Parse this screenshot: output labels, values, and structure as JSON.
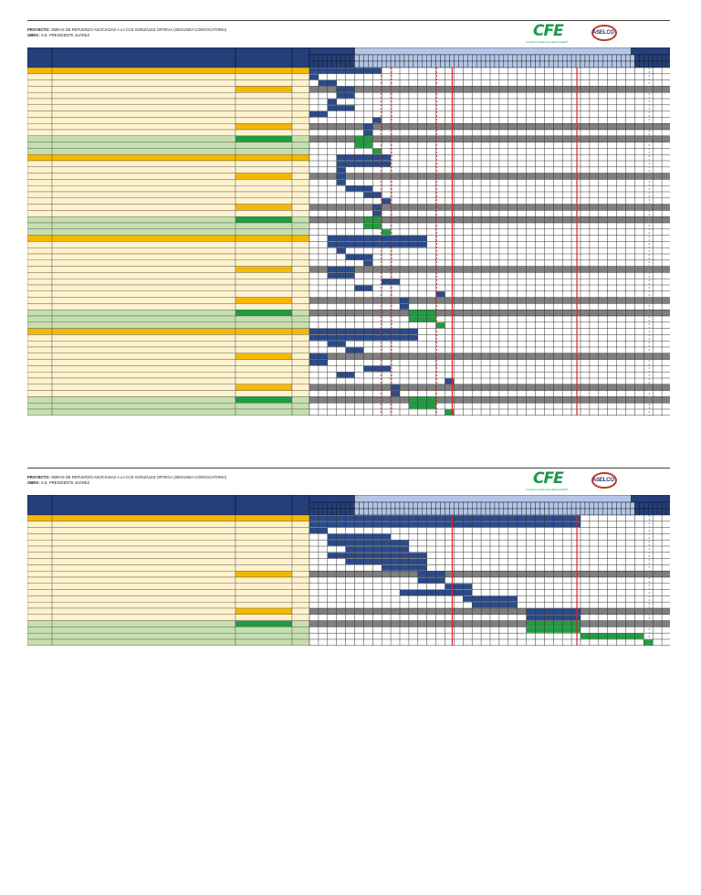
{
  "header": {
    "project_label": "PROYECTO:",
    "project_value": "OBRAS DE REFUERZO ASOCIADAS A LA CCE GONZÁLEZ ORTEGA (SEGUNDA CONVOCATORIA)",
    "work_label": "OBRA:",
    "work_value": "S.E. PRESIDENTE JUÁREZ"
  },
  "logos": {
    "cfe_mark": "CFE",
    "cfe_sub": "Comisión Federal de Electricidad®",
    "aselco": "ASELCO"
  },
  "colors": {
    "header_blue": "#243f7a",
    "task_blue": "#2b4a8a",
    "milestone_green": "#1e9e3e",
    "section_orange": "#f5b800",
    "row_cream": "#fff2cc",
    "row_green": "#c6dfb0",
    "grey_row": "#7f7f7f",
    "light_blue_header": "#b4c6e7",
    "deadline_red": "#e02020",
    "deadline_green": "#2eb88a"
  },
  "pages": [
    {
      "rows": [
        {
          "kind": "section",
          "bar": [
            0,
            8,
            "blue"
          ]
        },
        {
          "kind": "task",
          "bar": [
            0,
            1,
            "blue"
          ]
        },
        {
          "kind": "task",
          "bar": [
            1,
            2,
            "blue"
          ]
        },
        {
          "kind": "subsection",
          "bar": [
            3,
            2,
            "blue"
          ]
        },
        {
          "kind": "task",
          "bar": [
            3,
            2,
            "blue"
          ]
        },
        {
          "kind": "task",
          "bar": [
            2,
            1,
            "blue"
          ]
        },
        {
          "kind": "task",
          "bar": [
            2,
            3,
            "blue"
          ]
        },
        {
          "kind": "task",
          "bar": [
            0,
            2,
            "blue"
          ]
        },
        {
          "kind": "task",
          "bar": [
            7,
            1,
            "blue"
          ]
        },
        {
          "kind": "subsection",
          "bar": [
            6,
            1,
            "blue"
          ]
        },
        {
          "kind": "task",
          "bar": [
            6,
            1,
            "blue"
          ]
        },
        {
          "kind": "greensec",
          "bar": [
            5,
            2,
            "green"
          ]
        },
        {
          "kind": "green",
          "bar": [
            5,
            2,
            "green"
          ]
        },
        {
          "kind": "green",
          "bar": [
            7,
            1,
            "green"
          ]
        },
        {
          "kind": "section",
          "bar": [
            3,
            6,
            "blue"
          ]
        },
        {
          "kind": "task",
          "bar": [
            3,
            6,
            "blue"
          ]
        },
        {
          "kind": "task",
          "bar": [
            3,
            1,
            "blue"
          ]
        },
        {
          "kind": "subsection",
          "bar": [
            3,
            1,
            "blue"
          ]
        },
        {
          "kind": "task",
          "bar": [
            3,
            1,
            "blue"
          ]
        },
        {
          "kind": "task",
          "bar": [
            4,
            3,
            "blue"
          ]
        },
        {
          "kind": "task",
          "bar": [
            6,
            2,
            "blue"
          ]
        },
        {
          "kind": "task",
          "bar": [
            8,
            1,
            "blue"
          ]
        },
        {
          "kind": "subsection",
          "bar": [
            7,
            1,
            "blue"
          ]
        },
        {
          "kind": "task",
          "bar": [
            7,
            1,
            "blue"
          ]
        },
        {
          "kind": "greensec",
          "bar": [
            6,
            2,
            "green"
          ]
        },
        {
          "kind": "green",
          "bar": [
            6,
            2,
            "green"
          ]
        },
        {
          "kind": "green",
          "bar": [
            8,
            1,
            "green"
          ]
        },
        {
          "kind": "section",
          "bar": [
            2,
            11,
            "blue"
          ]
        },
        {
          "kind": "task",
          "bar": [
            2,
            11,
            "blue"
          ]
        },
        {
          "kind": "task",
          "bar": [
            3,
            1,
            "blue"
          ]
        },
        {
          "kind": "task",
          "bar": [
            4,
            3,
            "blue"
          ]
        },
        {
          "kind": "task",
          "bar": [
            6,
            1,
            "blue"
          ]
        },
        {
          "kind": "subsection",
          "bar": [
            2,
            3,
            "blue"
          ]
        },
        {
          "kind": "task",
          "bar": [
            2,
            3,
            "blue"
          ]
        },
        {
          "kind": "task",
          "bar": [
            8,
            2,
            "blue"
          ]
        },
        {
          "kind": "task",
          "bar": [
            5,
            2,
            "blue"
          ]
        },
        {
          "kind": "task",
          "bar": [
            14,
            1,
            "blue"
          ]
        },
        {
          "kind": "subsection",
          "bar": [
            10,
            1,
            "blue"
          ]
        },
        {
          "kind": "task",
          "bar": [
            10,
            1,
            "blue"
          ]
        },
        {
          "kind": "greensec",
          "bar": [
            11,
            3,
            "green"
          ]
        },
        {
          "kind": "green",
          "bar": [
            11,
            3,
            "green"
          ]
        },
        {
          "kind": "green",
          "bar": [
            14,
            1,
            "green"
          ]
        },
        {
          "kind": "section",
          "bar": [
            0,
            12,
            "blue"
          ]
        },
        {
          "kind": "task",
          "bar": [
            0,
            12,
            "blue"
          ]
        },
        {
          "kind": "task",
          "bar": [
            2,
            2,
            "blue"
          ]
        },
        {
          "kind": "task",
          "bar": [
            4,
            2,
            "blue"
          ]
        },
        {
          "kind": "subsection",
          "bar": [
            0,
            2,
            "blue"
          ]
        },
        {
          "kind": "task",
          "bar": [
            0,
            2,
            "blue"
          ]
        },
        {
          "kind": "task",
          "bar": [
            6,
            3,
            "blue"
          ]
        },
        {
          "kind": "task",
          "bar": [
            3,
            2,
            "blue"
          ]
        },
        {
          "kind": "task",
          "bar": [
            15,
            1,
            "blue"
          ]
        },
        {
          "kind": "subsection",
          "bar": [
            9,
            1,
            "blue"
          ]
        },
        {
          "kind": "task",
          "bar": [
            9,
            1,
            "blue"
          ]
        },
        {
          "kind": "greensec",
          "bar": [
            11,
            3,
            "green"
          ]
        },
        {
          "kind": "green",
          "bar": [
            11,
            3,
            "green"
          ]
        },
        {
          "kind": "green",
          "bar": [
            15,
            1,
            "green"
          ]
        }
      ]
    },
    {
      "rows": [
        {
          "kind": "section",
          "bar": [
            0,
            30,
            "blue"
          ]
        },
        {
          "kind": "task",
          "bar": [
            0,
            30,
            "blue"
          ]
        },
        {
          "kind": "task",
          "bar": [
            0,
            2,
            "blue"
          ]
        },
        {
          "kind": "task",
          "bar": [
            2,
            7,
            "blue"
          ]
        },
        {
          "kind": "task",
          "bar": [
            2,
            9,
            "blue"
          ]
        },
        {
          "kind": "task",
          "bar": [
            4,
            7,
            "blue"
          ]
        },
        {
          "kind": "task",
          "bar": [
            2,
            11,
            "blue"
          ]
        },
        {
          "kind": "task",
          "bar": [
            4,
            9,
            "blue"
          ]
        },
        {
          "kind": "task",
          "bar": [
            8,
            5,
            "blue"
          ]
        },
        {
          "kind": "subsection",
          "bar": [
            12,
            3,
            "blue"
          ]
        },
        {
          "kind": "task",
          "bar": [
            12,
            3,
            "blue"
          ]
        },
        {
          "kind": "task",
          "bar": [
            15,
            3,
            "blue"
          ]
        },
        {
          "kind": "task",
          "bar": [
            10,
            8,
            "blue"
          ]
        },
        {
          "kind": "task",
          "bar": [
            17,
            6,
            "blue"
          ]
        },
        {
          "kind": "task",
          "bar": [
            18,
            5,
            "blue"
          ]
        },
        {
          "kind": "subsection",
          "bar": [
            24,
            6,
            "blue"
          ]
        },
        {
          "kind": "task",
          "bar": [
            24,
            6,
            "blue"
          ]
        },
        {
          "kind": "greensec",
          "bar": [
            24,
            6,
            "green"
          ]
        },
        {
          "kind": "green",
          "bar": [
            24,
            6,
            "green"
          ]
        },
        {
          "kind": "green",
          "bar": [
            30,
            7,
            "green"
          ]
        },
        {
          "kind": "green",
          "bar": [
            37,
            1,
            "green"
          ]
        }
      ]
    }
  ]
}
